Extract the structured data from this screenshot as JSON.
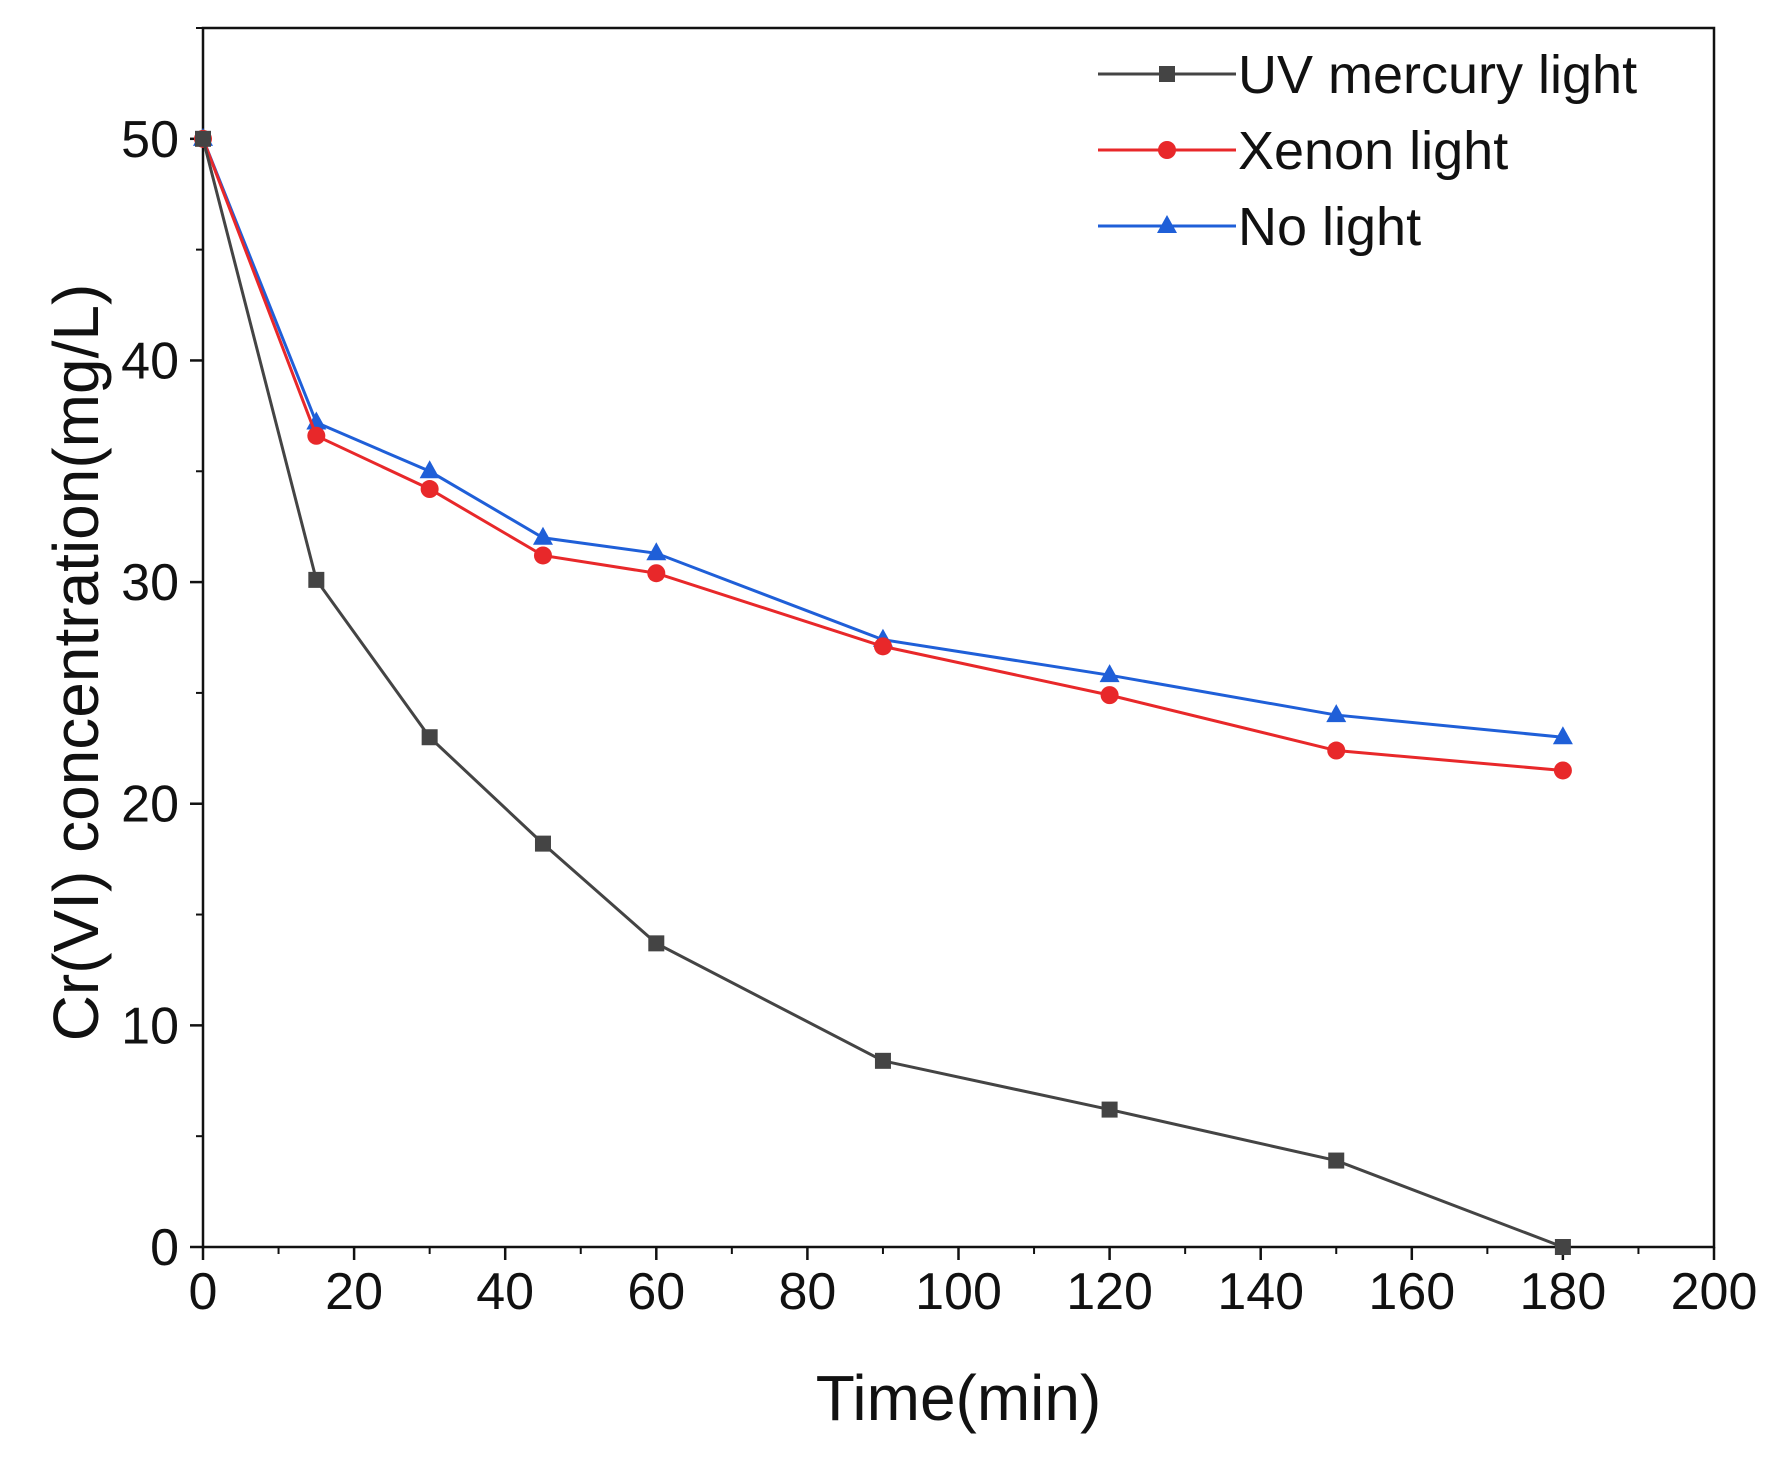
{
  "chart_data": {
    "type": "line",
    "title": "",
    "xlabel": "Time(min)",
    "ylabel": "Cr(VI) concentration(mg/L)",
    "xlim": [
      0,
      200
    ],
    "ylim": [
      0,
      55
    ],
    "xticks": [
      0,
      20,
      40,
      60,
      80,
      100,
      120,
      140,
      160,
      180,
      200
    ],
    "xtick_labels": [
      "0",
      "20",
      "40",
      "60",
      "80",
      "100",
      "120",
      "140",
      "160",
      "180",
      "200"
    ],
    "yticks": [
      0,
      10,
      20,
      30,
      40,
      50
    ],
    "ytick_labels": [
      "0",
      "10",
      "20",
      "30",
      "40",
      "50"
    ],
    "grid": false,
    "legend_position": "top-right",
    "x": [
      0,
      15,
      30,
      45,
      60,
      90,
      120,
      150,
      180
    ],
    "series": [
      {
        "name": "UV mercury light",
        "color": "#444444",
        "marker": "square",
        "values": [
          50,
          30.1,
          23.0,
          18.2,
          13.7,
          8.4,
          6.2,
          3.9,
          0
        ]
      },
      {
        "name": "Xenon light",
        "color": "#e8282a",
        "marker": "circle",
        "values": [
          50,
          36.6,
          34.2,
          31.2,
          30.4,
          27.1,
          24.9,
          22.4,
          21.5
        ]
      },
      {
        "name": "No light",
        "color": "#1f5fd8",
        "marker": "triangle",
        "values": [
          50,
          37.2,
          35.0,
          32.0,
          31.3,
          27.4,
          25.8,
          24.0,
          23.0
        ]
      }
    ]
  }
}
